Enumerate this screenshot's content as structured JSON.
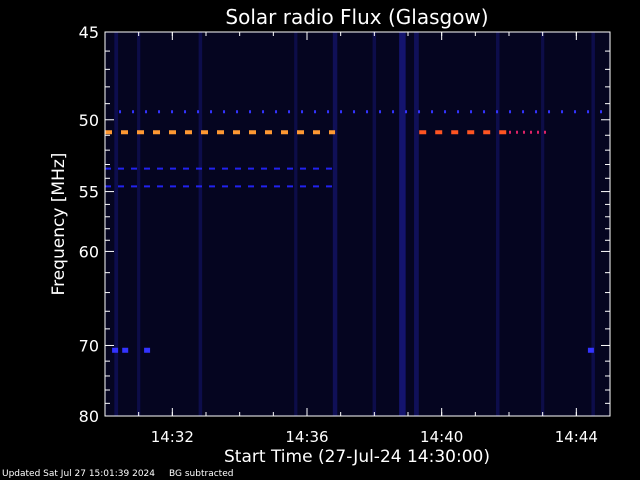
{
  "chart_data": {
    "type": "heatmap",
    "title": "Solar radio Flux (Glasgow)",
    "xlabel": "Start Time (27-Jul-24 14:30:00)",
    "ylabel": "Frequency [MHz]",
    "x_unit": "time",
    "xlim": [
      "14:30:00",
      "14:45:00"
    ],
    "ylim": [
      45,
      80
    ],
    "x_ticks": [
      {
        "time": "14:32:00",
        "label": "14:32"
      },
      {
        "time": "14:36:00",
        "label": "14:36"
      },
      {
        "time": "14:40:00",
        "label": "14:40"
      },
      {
        "time": "14:44:00",
        "label": "14:44"
      }
    ],
    "y_ticks": [
      45,
      50,
      55,
      60,
      70,
      80
    ],
    "background_color": "#050520",
    "dashed_lines": [
      {
        "freq": 49.5,
        "start": "14:30:25",
        "end": "14:45:00",
        "color": "#3333ff",
        "dash": "2 11",
        "width": 3
      },
      {
        "freq": 50.8,
        "start": "14:30:00",
        "end": "14:36:50",
        "color": "#ff9933",
        "dash": "7 9",
        "width": 4
      },
      {
        "freq": 50.8,
        "start": "14:39:20",
        "end": "14:42:00",
        "color": "#ff5522",
        "dash": "7 9",
        "width": 4
      },
      {
        "freq": 50.8,
        "start": "14:42:00",
        "end": "14:43:10",
        "color": "#dd2266",
        "dash": "2 5",
        "width": 3
      },
      {
        "freq": 53.3,
        "start": "14:30:00",
        "end": "14:36:50",
        "color": "#2222ee",
        "dash": "6 7",
        "width": 2
      },
      {
        "freq": 54.6,
        "start": "14:30:00",
        "end": "14:36:50",
        "color": "#2222ee",
        "dash": "6 7",
        "width": 2
      }
    ],
    "bright_spots": [
      {
        "time": "14:30:18",
        "freq": 70.6,
        "color": "#3333ff"
      },
      {
        "time": "14:30:36",
        "freq": 70.6,
        "color": "#3333ff"
      },
      {
        "time": "14:31:15",
        "freq": 70.6,
        "color": "#3333ff"
      },
      {
        "time": "14:44:26",
        "freq": 70.6,
        "color": "#3333ff"
      }
    ],
    "streaks": [
      {
        "time": "14:30:20",
        "intensity": 0.35
      },
      {
        "time": "14:31:00",
        "intensity": 0.25
      },
      {
        "time": "14:32:50",
        "intensity": 0.3
      },
      {
        "time": "14:35:40",
        "intensity": 0.25
      },
      {
        "time": "14:36:50",
        "intensity": 0.5
      },
      {
        "time": "14:38:00",
        "intensity": 0.3
      },
      {
        "time": "14:38:50",
        "intensity": 0.9
      },
      {
        "time": "14:39:15",
        "intensity": 0.55
      },
      {
        "time": "14:41:40",
        "intensity": 0.3
      },
      {
        "time": "14:43:00",
        "intensity": 0.25
      },
      {
        "time": "14:44:30",
        "intensity": 0.3
      }
    ]
  },
  "footer": {
    "updated": "Updated Sat Jul 27 15:01:39 2024",
    "bg": "BG subtracted"
  }
}
